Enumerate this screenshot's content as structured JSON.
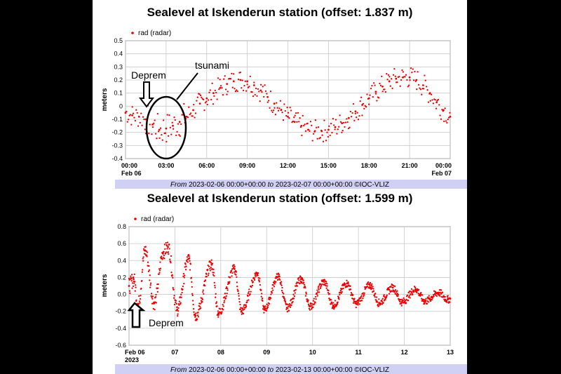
{
  "chart_data": [
    {
      "type": "scatter",
      "title": "Sealevel at Iskenderun station (offset: 1.837 m)",
      "ylabel": "meters",
      "ylim": [
        -0.4,
        0.5
      ],
      "y_ticks": [
        "0.5",
        "0.4",
        "0.3",
        "0.2",
        "0.1",
        "0",
        "-0.1",
        "-0.2",
        "-0.3",
        "-0.4"
      ],
      "x_unit": "hours from 2023-02-06 00:00",
      "xlim": [
        0,
        24
      ],
      "x_ticks": [
        {
          "x": 0,
          "label": "00:00",
          "sub": "Feb 06"
        },
        {
          "x": 3,
          "label": "03:00",
          "sub": ""
        },
        {
          "x": 6,
          "label": "06:00",
          "sub": ""
        },
        {
          "x": 9,
          "label": "09:00",
          "sub": ""
        },
        {
          "x": 12,
          "label": "12:00",
          "sub": ""
        },
        {
          "x": 15,
          "label": "15:00",
          "sub": ""
        },
        {
          "x": 18,
          "label": "18:00",
          "sub": ""
        },
        {
          "x": 21,
          "label": "21:00",
          "sub": ""
        },
        {
          "x": 24,
          "label": "00:00",
          "sub": "Feb 07"
        }
      ],
      "grid": true,
      "legend_position": "top-left",
      "series": [
        {
          "name": "rad (radar)",
          "color": "#ee0000",
          "x": [
            0,
            0.5,
            1,
            1.5,
            2,
            2.5,
            3,
            3.5,
            4,
            4.5,
            5,
            5.5,
            6,
            6.5,
            7,
            7.5,
            8,
            8.5,
            9,
            9.5,
            10,
            10.5,
            11,
            11.5,
            12,
            12.5,
            13,
            13.5,
            14,
            14.5,
            15,
            15.5,
            16,
            16.5,
            17,
            17.5,
            18,
            18.5,
            19,
            19.5,
            20,
            20.5,
            21,
            21.5,
            22,
            22.5,
            23,
            23.5,
            24
          ],
          "y": [
            -0.05,
            -0.07,
            -0.08,
            -0.1,
            -0.14,
            -0.18,
            -0.17,
            -0.15,
            -0.12,
            -0.08,
            -0.03,
            0.02,
            0.06,
            0.1,
            0.14,
            0.17,
            0.19,
            0.2,
            0.19,
            0.16,
            0.12,
            0.07,
            0.02,
            -0.03,
            -0.08,
            -0.12,
            -0.15,
            -0.18,
            -0.19,
            -0.19,
            -0.18,
            -0.16,
            -0.13,
            -0.09,
            -0.04,
            0.01,
            0.06,
            0.11,
            0.15,
            0.19,
            0.21,
            0.22,
            0.22,
            0.2,
            0.16,
            0.1,
            0.03,
            -0.03,
            -0.08
          ]
        }
      ],
      "annotations": {
        "arrow_label": "Deprem",
        "circle_label": "tsunami"
      },
      "footer": {
        "from_label": "From",
        "from": "2023-02-06 00:00+00:00",
        "to_label": "to",
        "to": "2023-02-07 00:00+00:00",
        "credit": "©IOC-VLIZ"
      }
    },
    {
      "type": "scatter",
      "title": "Sealevel at Iskenderun station (offset: 1.599 m)",
      "ylabel": "meters",
      "ylim": [
        -0.6,
        0.8
      ],
      "y_ticks": [
        "0.8",
        "0.6",
        "0.4",
        "0.2",
        "0.0",
        "-0.2",
        "-0.4",
        "-0.6"
      ],
      "x_unit": "days from 2023-02-06",
      "xlim": [
        0,
        7
      ],
      "x_ticks": [
        {
          "x": 0,
          "label": "Feb 06",
          "sub": "2023"
        },
        {
          "x": 1,
          "label": "07",
          "sub": ""
        },
        {
          "x": 2,
          "label": "08",
          "sub": ""
        },
        {
          "x": 3,
          "label": "09",
          "sub": ""
        },
        {
          "x": 4,
          "label": "10",
          "sub": ""
        },
        {
          "x": 5,
          "label": "11",
          "sub": ""
        },
        {
          "x": 6,
          "label": "12",
          "sub": ""
        },
        {
          "x": 7,
          "label": "13",
          "sub": ""
        }
      ],
      "grid": true,
      "legend_position": "top-left",
      "series": [
        {
          "name": "rad (radar)",
          "color": "#ee0000",
          "x": [
            0,
            0.1,
            0.2,
            0.35,
            0.55,
            0.75,
            0.85,
            1.05,
            1.3,
            1.45,
            1.8,
            1.95,
            2.3,
            2.45,
            2.8,
            2.95,
            3.25,
            3.45,
            3.75,
            3.95,
            4.25,
            4.45,
            4.75,
            4.95,
            5.25,
            5.45,
            5.75,
            5.95,
            6.25,
            6.45,
            6.75,
            6.95,
            7.0
          ],
          "y": [
            0.1,
            0.18,
            -0.12,
            0.52,
            -0.1,
            0.5,
            0.56,
            -0.18,
            0.42,
            -0.25,
            0.35,
            -0.22,
            0.3,
            -0.2,
            0.25,
            -0.18,
            0.21,
            -0.16,
            0.18,
            -0.14,
            0.15,
            -0.13,
            0.13,
            -0.11,
            0.11,
            -0.1,
            0.08,
            -0.09,
            0.06,
            -0.08,
            0.02,
            -0.06,
            -0.05
          ]
        }
      ],
      "annotations": {
        "arrow_label": "Deprem"
      },
      "footer": {
        "from_label": "From",
        "from": "2023-02-06 00:00+00:00",
        "to_label": "to",
        "to": "2023-02-13 00:00+00:00",
        "credit": "©IOC-VLIZ"
      }
    }
  ]
}
